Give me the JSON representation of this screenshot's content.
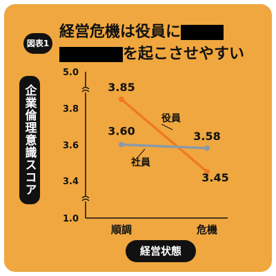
{
  "figure_badge": "図表1",
  "title": {
    "line1_prefix": "経営危機は役員に",
    "line2_suffix": "を起こさせやすい"
  },
  "colors": {
    "background": "#f0a73f",
    "officers_line": "#f07a1f",
    "employees_line": "#8a9aa8",
    "ink": "#111111"
  },
  "chart_data": {
    "type": "line",
    "categories": [
      "順調",
      "危機"
    ],
    "series": [
      {
        "name": "役員",
        "values": [
          3.85,
          3.45
        ],
        "value_labels": [
          "3.85",
          "3.45"
        ],
        "color": "#f07a1f"
      },
      {
        "name": "社員",
        "values": [
          3.6,
          3.58
        ],
        "value_labels": [
          "3.60",
          "3.58"
        ],
        "color": "#8a9aa8"
      }
    ],
    "xlabel": "経営状態",
    "ylabel": "企業倫理意識スコア",
    "yticks": [
      "5.0",
      "3.8",
      "3.6",
      "3.4",
      "1.0"
    ],
    "ylim": [
      3.2,
      4.0
    ],
    "axis_break": true,
    "legend": "inline"
  }
}
